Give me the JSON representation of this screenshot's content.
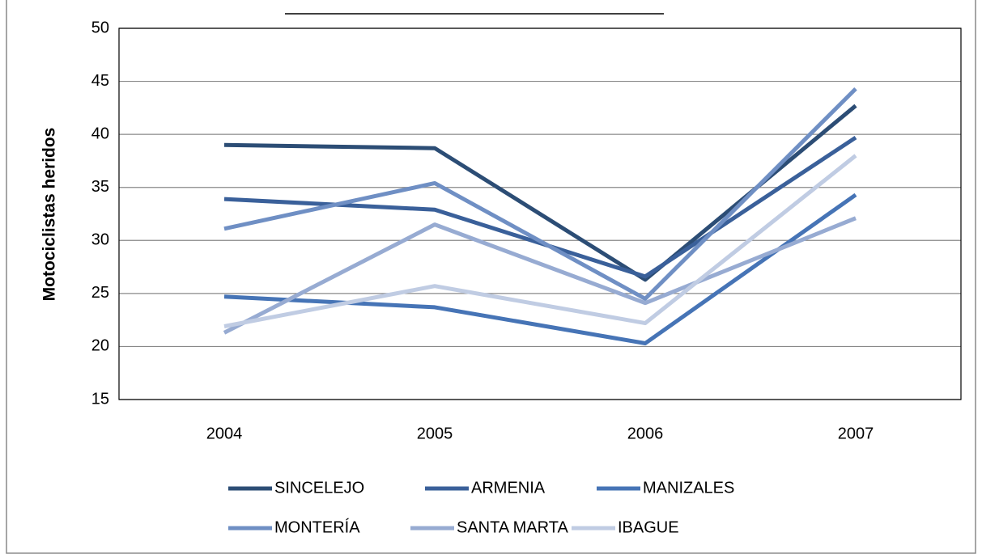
{
  "chart_data": {
    "type": "line",
    "ylabel": "Motociclistas heridos",
    "categories": [
      "2004",
      "2005",
      "2006",
      "2007"
    ],
    "series": [
      {
        "name": "SINCELEJO",
        "color": "#2c4d75",
        "values": [
          39.0,
          38.7,
          26.3,
          42.7
        ]
      },
      {
        "name": "ARMENIA",
        "color": "#3a609a",
        "values": [
          33.9,
          32.9,
          26.6,
          39.7
        ]
      },
      {
        "name": "MANIZALES",
        "color": "#4674b6",
        "values": [
          24.7,
          23.7,
          20.3,
          34.3
        ]
      },
      {
        "name": "MONTERÍA",
        "color": "#6f8fc4",
        "values": [
          31.1,
          35.4,
          24.5,
          44.3
        ]
      },
      {
        "name": "SANTA MARTA",
        "color": "#97abd2",
        "values": [
          21.3,
          31.5,
          24.1,
          32.1
        ]
      },
      {
        "name": "IBAGUE",
        "color": "#c0cce3",
        "values": [
          21.9,
          25.7,
          22.2,
          38.0
        ]
      }
    ],
    "ylim": [
      15,
      50
    ],
    "yticks": [
      15,
      20,
      25,
      30,
      35,
      40,
      45,
      50
    ],
    "grid": true
  }
}
